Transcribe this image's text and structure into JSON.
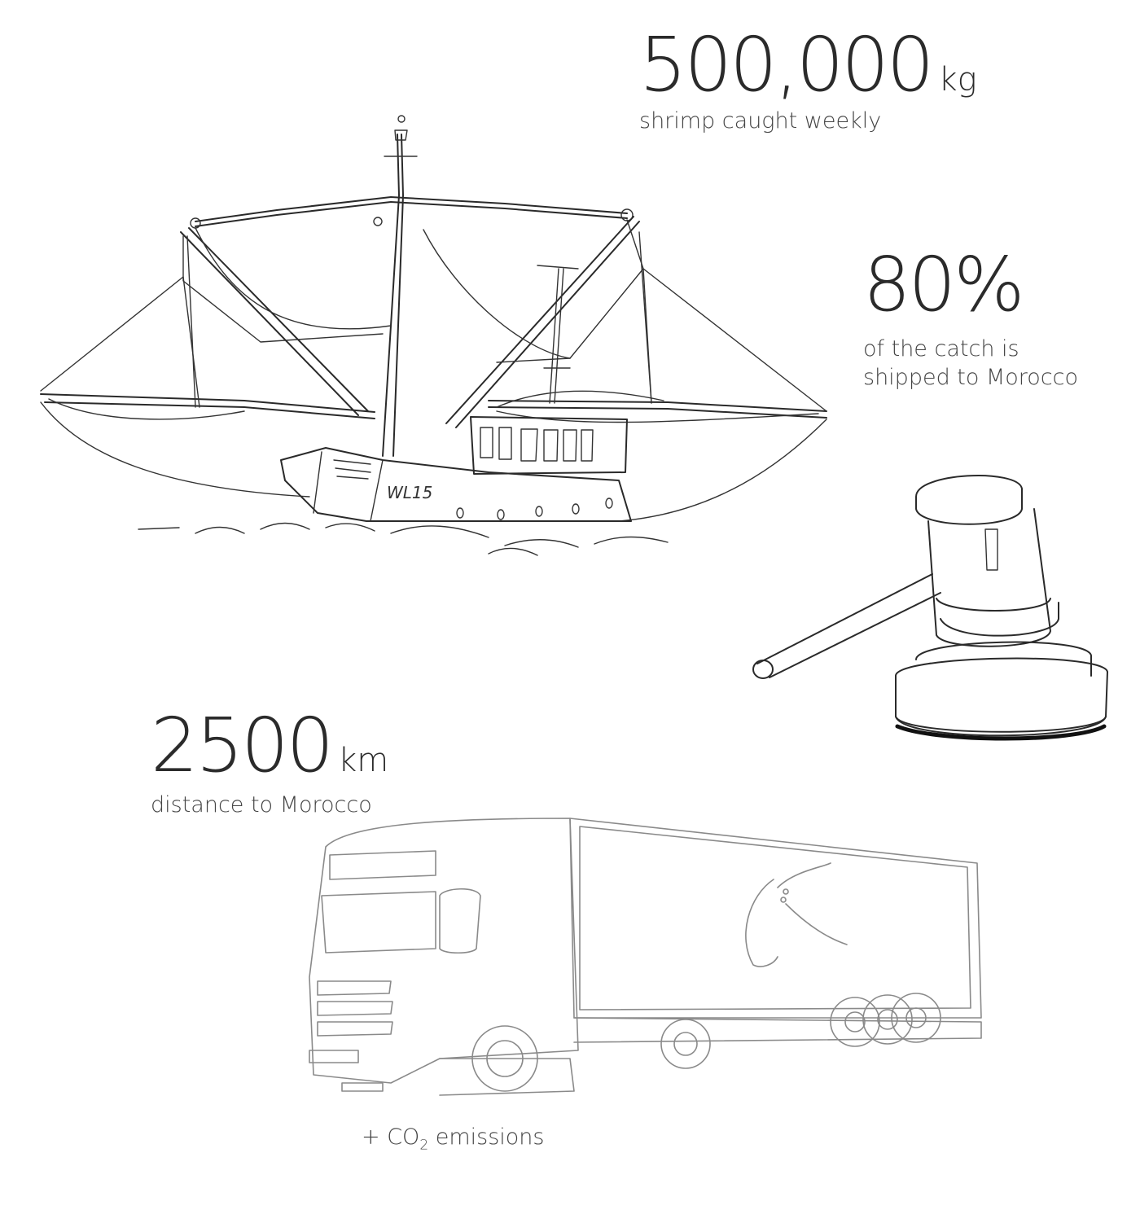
{
  "stats": {
    "catch": {
      "value": "500,000",
      "unit": "kg",
      "caption": "shrimp caught weekly"
    },
    "export": {
      "value": "80%",
      "caption_line1": "of the catch is",
      "caption_line2": "shipped to Morocco"
    },
    "distance": {
      "value": "2500",
      "unit": "km",
      "caption": "distance to Morocco"
    },
    "emissions": {
      "prefix": "+ CO",
      "subscript": "2",
      "suffix": " emissions"
    }
  },
  "illustrations": {
    "boat_registration": "WL15",
    "boat": "trawler-illustration",
    "gavel": "gavel-illustration",
    "truck": "truck-illustration"
  },
  "colors": {
    "text": "#2b2b2b",
    "ink": "#2a2a2a",
    "truck_ink": "#8a8a8a"
  }
}
